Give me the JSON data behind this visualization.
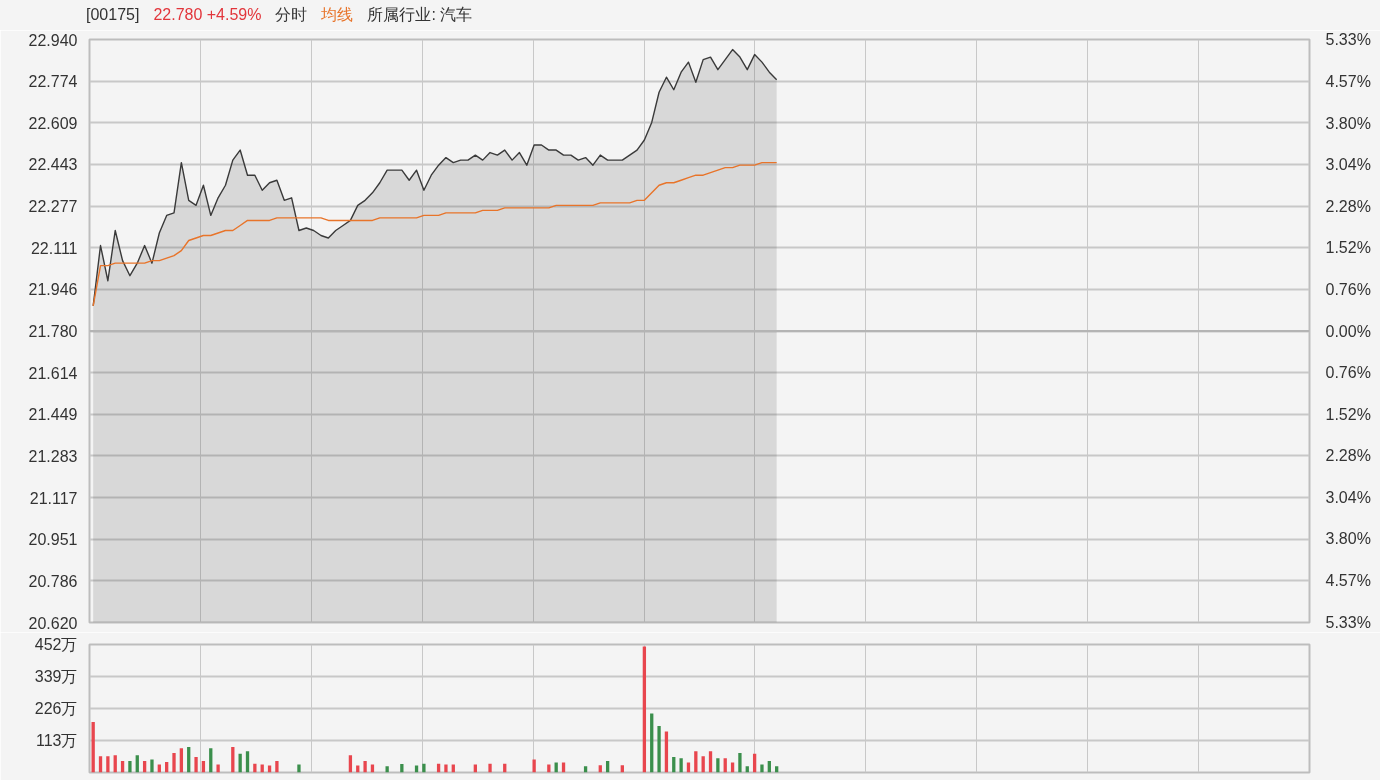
{
  "chart_data": [
    {
      "type": "line",
      "title": "[00175]",
      "subtitle": "22.780 +4.59%",
      "annotations": [
        "所属行业: 汽车"
      ],
      "legend": "top left",
      "grid": true,
      "categories": [
        null,
        null,
        null,
        null,
        null,
        null,
        null,
        null,
        null,
        null,
        null,
        null,
        null,
        null,
        null,
        null,
        null,
        null,
        null,
        null,
        null,
        null,
        null,
        null,
        null,
        null,
        null,
        null,
        null,
        null,
        null,
        null,
        null,
        null,
        null,
        null,
        null,
        null,
        null,
        null,
        null,
        null,
        null,
        null,
        null,
        null,
        null,
        null,
        null,
        null,
        null,
        null,
        null,
        null,
        null,
        null,
        null,
        null,
        null,
        null,
        null,
        null,
        null,
        null,
        null,
        null,
        null,
        null,
        null,
        null,
        null,
        null,
        null,
        null,
        null,
        null,
        null,
        null,
        null,
        null,
        null,
        null,
        null,
        null,
        null,
        null,
        null,
        null,
        null,
        null,
        null,
        null,
        null,
        null
      ],
      "series": [
        {
          "name": "分时",
          "type": "area",
          "color": "#3a3a3a",
          "values": [
            21.88,
            22.12,
            21.98,
            22.18,
            22.06,
            22.0,
            22.05,
            22.12,
            22.05,
            22.17,
            22.24,
            22.25,
            22.45,
            22.3,
            22.28,
            22.36,
            22.24,
            22.31,
            22.36,
            22.46,
            22.5,
            22.4,
            22.4,
            22.34,
            22.37,
            22.38,
            22.3,
            22.31,
            22.18,
            22.19,
            22.18,
            22.16,
            22.15,
            22.18,
            22.2,
            22.22,
            22.28,
            22.3,
            22.33,
            22.37,
            22.42,
            22.42,
            22.42,
            22.38,
            22.42,
            22.34,
            22.4,
            22.44,
            22.47,
            22.45,
            22.46,
            22.46,
            22.48,
            22.46,
            22.49,
            22.48,
            22.5,
            22.46,
            22.49,
            22.44,
            22.52,
            22.52,
            22.5,
            22.5,
            22.48,
            22.48,
            22.46,
            22.47,
            22.44,
            22.48,
            22.46,
            22.46,
            22.46,
            22.48,
            22.5,
            22.54,
            22.61,
            22.73,
            22.79,
            22.74,
            22.81,
            22.85,
            22.77,
            22.86,
            22.87,
            22.82,
            22.86,
            22.9,
            22.87,
            22.82,
            22.88,
            22.85,
            22.81,
            22.78
          ]
        },
        {
          "name": "均线",
          "type": "line",
          "color": "#e8742a",
          "values": [
            21.88,
            22.04,
            22.04,
            22.05,
            22.05,
            22.05,
            22.05,
            22.05,
            22.06,
            22.06,
            22.07,
            22.08,
            22.1,
            22.14,
            22.15,
            22.16,
            22.16,
            22.17,
            22.18,
            22.18,
            22.2,
            22.22,
            22.22,
            22.22,
            22.22,
            22.23,
            22.23,
            22.23,
            22.23,
            22.23,
            22.23,
            22.23,
            22.22,
            22.22,
            22.22,
            22.22,
            22.22,
            22.22,
            22.22,
            22.23,
            22.23,
            22.23,
            22.23,
            22.23,
            22.23,
            22.24,
            22.24,
            22.24,
            22.25,
            22.25,
            22.25,
            22.25,
            22.25,
            22.26,
            22.26,
            22.26,
            22.27,
            22.27,
            22.27,
            22.27,
            22.27,
            22.27,
            22.27,
            22.28,
            22.28,
            22.28,
            22.28,
            22.28,
            22.28,
            22.29,
            22.29,
            22.29,
            22.29,
            22.29,
            22.3,
            22.3,
            22.33,
            22.36,
            22.37,
            22.37,
            22.38,
            22.39,
            22.4,
            22.4,
            22.41,
            22.42,
            22.43,
            22.43,
            22.44,
            22.44,
            22.44,
            22.45,
            22.45,
            22.45
          ]
        }
      ],
      "ylim": [
        20.62,
        22.94
      ],
      "yticks": [
        {
          "value": 20.62,
          "label": "20.620"
        },
        {
          "value": 20.786,
          "label": "20.786"
        },
        {
          "value": 20.951,
          "label": "20.951"
        },
        {
          "value": 21.117,
          "label": "21.117"
        },
        {
          "value": 21.283,
          "label": "21.283"
        },
        {
          "value": 21.449,
          "label": "21.449"
        },
        {
          "value": 21.614,
          "label": "21.614"
        },
        {
          "value": 21.78,
          "label": "21.780"
        },
        {
          "value": 21.946,
          "label": "21.946"
        },
        {
          "value": 22.111,
          "label": "22.111"
        },
        {
          "value": 22.277,
          "label": "22.277"
        },
        {
          "value": 22.443,
          "label": "22.443"
        },
        {
          "value": 22.609,
          "label": "22.609"
        },
        {
          "value": 22.774,
          "label": "22.774"
        },
        {
          "value": 22.94,
          "label": "22.940"
        }
      ],
      "y2lim": [
        -5.33,
        5.33
      ],
      "y2ticks": [
        {
          "value": 5.33,
          "label": "5.33%"
        },
        {
          "value": 4.57,
          "label": "4.57%"
        },
        {
          "value": 3.8,
          "label": "3.80%"
        },
        {
          "value": 3.04,
          "label": "3.04%"
        },
        {
          "value": 2.28,
          "label": "2.28%"
        },
        {
          "value": 1.52,
          "label": "1.52%"
        },
        {
          "value": 0.76,
          "label": "0.76%"
        },
        {
          "value": 0,
          "label": "0.00%"
        },
        {
          "value": -0.76,
          "label": "0.76%"
        },
        {
          "value": -1.52,
          "label": "1.52%"
        },
        {
          "value": -2.28,
          "label": "2.28%"
        },
        {
          "value": -3.04,
          "label": "3.04%"
        },
        {
          "value": -3.8,
          "label": "3.80%"
        },
        {
          "value": -4.57,
          "label": "4.57%"
        },
        {
          "value": -5.33,
          "label": "5.33%"
        }
      ],
      "ref_lines": [
        {
          "axis": "y",
          "value": 21.78,
          "color": "#b4b4b4"
        }
      ]
    },
    {
      "type": "bar",
      "grid": true,
      "categories": [
        null,
        null,
        null,
        null,
        null,
        null,
        null,
        null,
        null,
        null,
        null,
        null,
        null,
        null,
        null,
        null,
        null,
        null,
        null,
        null,
        null,
        null,
        null,
        null,
        null,
        null,
        null,
        null,
        null,
        null,
        null,
        null,
        null,
        null,
        null,
        null,
        null,
        null,
        null,
        null,
        null,
        null,
        null,
        null,
        null,
        null,
        null,
        null,
        null,
        null,
        null,
        null,
        null,
        null,
        null,
        null,
        null,
        null,
        null,
        null,
        null,
        null,
        null,
        null,
        null,
        null,
        null,
        null,
        null,
        null,
        null,
        null,
        null,
        null,
        null,
        null,
        null,
        null,
        null,
        null,
        null,
        null,
        null,
        null,
        null,
        null,
        null,
        null,
        null,
        null,
        null,
        null,
        null,
        null
      ],
      "values": [
        178,
        57,
        57,
        61,
        41,
        41,
        61,
        41,
        46,
        28,
        37,
        69,
        86,
        90,
        55,
        41,
        86,
        28,
        null,
        90,
        66,
        75,
        31,
        28,
        25,
        41,
        null,
        null,
        28,
        null,
        null,
        null,
        null,
        null,
        null,
        61,
        25,
        41,
        28,
        null,
        22,
        null,
        30,
        null,
        25,
        31,
        null,
        31,
        28,
        28,
        null,
        null,
        28,
        null,
        31,
        null,
        31,
        null,
        null,
        null,
        46,
        null,
        28,
        35,
        35,
        null,
        null,
        22,
        null,
        26,
        41,
        null,
        26,
        null,
        null,
        445,
        208,
        164,
        145,
        55,
        50,
        35,
        75,
        57,
        75,
        50,
        50,
        35,
        69,
        22,
        66,
        28,
        41,
        22
      ],
      "colors": [
        "#e8464e",
        "#e8464e",
        "#e8464e",
        "#e8464e",
        "#e8464e",
        "#3b8f4c",
        "#3b8f4c",
        "#e8464e",
        "#3b8f4c",
        "#e8464e",
        "#e8464e",
        "#e8464e",
        "#e8464e",
        "#3b8f4c",
        "#e8464e",
        "#e8464e",
        "#3b8f4c",
        "#e8464e",
        null,
        "#e8464e",
        "#3b8f4c",
        "#3b8f4c",
        "#e8464e",
        "#e8464e",
        "#e8464e",
        "#e8464e",
        null,
        null,
        "#3b8f4c",
        null,
        null,
        null,
        null,
        null,
        null,
        "#e8464e",
        "#e8464e",
        "#e8464e",
        "#e8464e",
        null,
        "#3b8f4c",
        null,
        "#3b8f4c",
        null,
        "#3b8f4c",
        "#3b8f4c",
        null,
        "#e8464e",
        "#e8464e",
        "#e8464e",
        null,
        null,
        "#e8464e",
        null,
        "#e8464e",
        null,
        "#e8464e",
        null,
        null,
        null,
        "#e8464e",
        null,
        "#e8464e",
        "#3b8f4c",
        "#e8464e",
        null,
        null,
        "#3b8f4c",
        null,
        "#e8464e",
        "#3b8f4c",
        null,
        "#e8464e",
        null,
        null,
        "#e8464e",
        "#3b8f4c",
        "#3b8f4c",
        "#e8464e",
        "#3b8f4c",
        "#3b8f4c",
        "#e8464e",
        "#e8464e",
        "#e8464e",
        "#e8464e",
        "#3b8f4c",
        "#e8464e",
        "#e8464e",
        "#3b8f4c",
        "#3b8f4c",
        "#e8464e",
        "#3b8f4c",
        "#3b8f4c",
        "#3b8f4c"
      ],
      "ylim": [
        0,
        452
      ],
      "yticks": [
        {
          "value": 113,
          "label": "113万"
        },
        {
          "value": 226,
          "label": "226万"
        },
        {
          "value": 339,
          "label": "339万"
        },
        {
          "value": 452,
          "label": "452万"
        }
      ]
    }
  ]
}
